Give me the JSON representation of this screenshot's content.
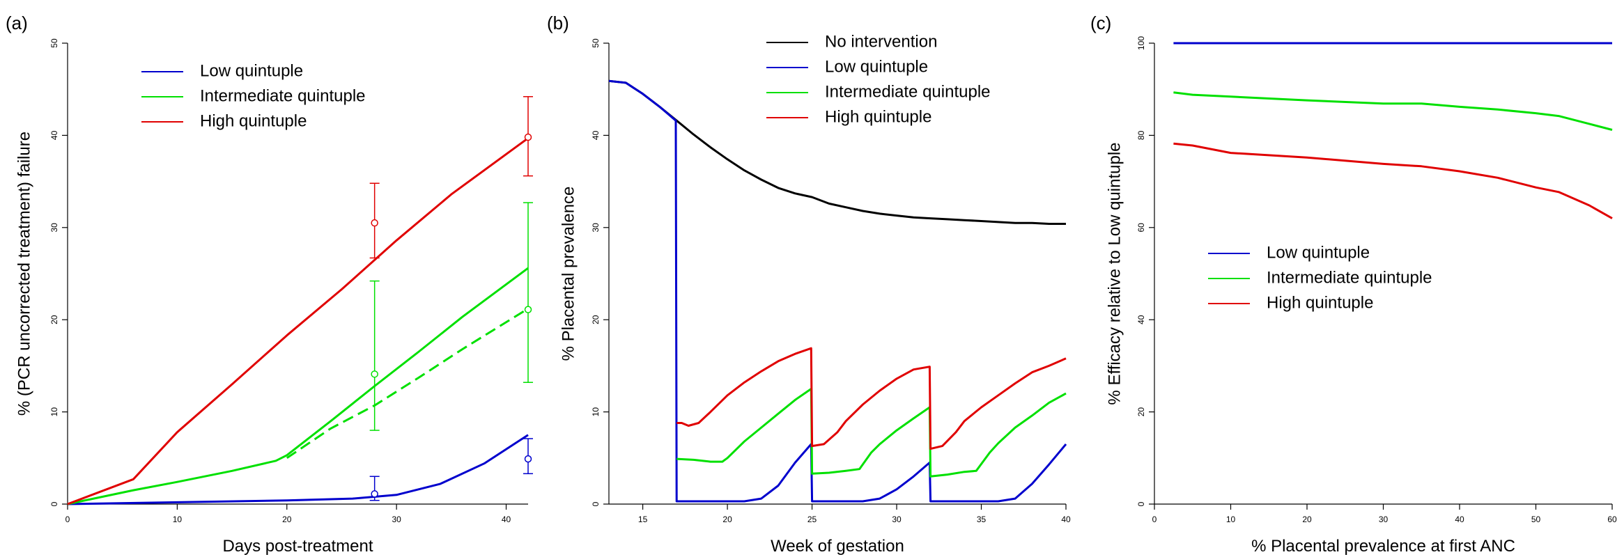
{
  "colors": {
    "no_intervention": "#000000",
    "low": "#0000CD",
    "intermediate": "#00E000",
    "high": "#E00000"
  },
  "chart_data": [
    {
      "panel": "(a)",
      "type": "line",
      "xlabel": "Days post-treatment",
      "ylabel": "% (PCR uncorrected treatment) failure",
      "xlim": [
        0,
        42
      ],
      "ylim": [
        0,
        50
      ],
      "xticks": [
        0,
        10,
        20,
        30,
        40
      ],
      "yticks": [
        0,
        10,
        20,
        30,
        40,
        50
      ],
      "legend_position": "top-left",
      "series": [
        {
          "name": "Low quintuple",
          "color_key": "low",
          "style": "solid",
          "x": [
            0,
            10,
            20,
            26,
            30,
            34,
            38,
            42
          ],
          "y": [
            0,
            0.2,
            0.4,
            0.6,
            1.0,
            2.2,
            4.4,
            7.5
          ]
        },
        {
          "name": "Intermediate quintuple",
          "color_key": "intermediate",
          "style": "solid",
          "x": [
            0,
            6,
            10,
            15,
            19,
            20,
            24,
            28,
            32,
            36,
            42
          ],
          "y": [
            0,
            1.5,
            2.4,
            3.6,
            4.7,
            5.3,
            9.0,
            12.8,
            16.5,
            20.3,
            25.6
          ]
        },
        {
          "name": "",
          "color_key": "intermediate",
          "style": "dashed",
          "x": [
            20,
            24,
            28,
            32,
            36,
            42
          ],
          "y": [
            5.0,
            8.2,
            10.7,
            13.7,
            16.8,
            21.2
          ]
        },
        {
          "name": "High quintuple",
          "color_key": "high",
          "style": "solid",
          "x": [
            0,
            6,
            10,
            15,
            20,
            25,
            30,
            35,
            42
          ],
          "y": [
            0,
            2.7,
            7.8,
            13.0,
            18.3,
            23.3,
            28.6,
            33.6,
            39.7
          ]
        }
      ],
      "error_bars": [
        {
          "color_key": "high",
          "x": 28,
          "y": 30.5,
          "lo": 26.7,
          "hi": 34.8
        },
        {
          "color_key": "high",
          "x": 42,
          "y": 39.8,
          "lo": 35.6,
          "hi": 44.2
        },
        {
          "color_key": "intermediate",
          "x": 28,
          "y": 14.1,
          "lo": 8.0,
          "hi": 24.2
        },
        {
          "color_key": "intermediate",
          "x": 42,
          "y": 21.1,
          "lo": 13.2,
          "hi": 32.7
        },
        {
          "color_key": "low",
          "x": 28,
          "y": 1.1,
          "lo": 0.4,
          "hi": 3.0
        },
        {
          "color_key": "low",
          "x": 42,
          "y": 4.9,
          "lo": 3.3,
          "hi": 7.1
        }
      ]
    },
    {
      "panel": "(b)",
      "type": "line",
      "xlabel": "Week of gestation",
      "ylabel": "% Placental prevalence",
      "xlim": [
        13,
        40
      ],
      "ylim": [
        0,
        50
      ],
      "xticks": [
        15,
        20,
        25,
        30,
        35,
        40
      ],
      "yticks": [
        0,
        10,
        20,
        30,
        40,
        50
      ],
      "legend_position": "top-right",
      "series": [
        {
          "name": "No intervention",
          "color_key": "no_intervention",
          "style": "solid",
          "x": [
            13,
            14,
            15,
            16,
            17,
            18,
            19,
            20,
            21,
            22,
            23,
            24,
            25,
            26,
            27,
            28,
            29,
            30,
            31,
            32,
            33,
            34,
            35,
            36,
            37,
            38,
            39,
            40
          ],
          "y": [
            45.9,
            45.7,
            44.5,
            43.1,
            41.6,
            40.1,
            38.7,
            37.4,
            36.2,
            35.2,
            34.3,
            33.7,
            33.3,
            32.6,
            32.2,
            31.8,
            31.5,
            31.3,
            31.1,
            31.0,
            30.9,
            30.8,
            30.7,
            30.6,
            30.5,
            30.5,
            30.4,
            30.4
          ]
        },
        {
          "name": "Low quintuple",
          "color_key": "low",
          "style": "solid",
          "x": [
            13,
            14,
            15,
            16,
            16.95,
            17,
            21,
            22,
            23,
            24,
            24.95,
            25,
            28,
            29,
            30,
            31,
            31.95,
            32,
            36,
            37,
            38,
            39,
            40
          ],
          "y": [
            45.9,
            45.7,
            44.5,
            43.1,
            41.6,
            0.3,
            0.3,
            0.6,
            2.0,
            4.5,
            6.5,
            0.3,
            0.3,
            0.6,
            1.6,
            3.0,
            4.5,
            0.3,
            0.3,
            0.6,
            2.2,
            4.3,
            6.5
          ]
        },
        {
          "name": "Intermediate quintuple",
          "color_key": "intermediate",
          "style": "solid",
          "x": [
            17,
            18,
            19,
            19.7,
            20,
            21,
            22,
            23,
            24,
            24.95,
            25,
            26,
            27,
            27.8,
            28.5,
            29,
            30,
            31,
            31.95,
            32,
            33,
            34,
            34.7,
            35.5,
            36,
            37,
            38,
            39,
            40
          ],
          "y": [
            4.9,
            4.8,
            4.6,
            4.6,
            5.0,
            6.8,
            8.3,
            9.8,
            11.3,
            12.5,
            3.3,
            3.4,
            3.6,
            3.8,
            5.6,
            6.5,
            8.0,
            9.3,
            10.5,
            3.0,
            3.2,
            3.5,
            3.6,
            5.6,
            6.6,
            8.3,
            9.6,
            11.0,
            12.0
          ]
        },
        {
          "name": "High quintuple",
          "color_key": "high",
          "style": "solid",
          "x": [
            17,
            17.3,
            17.7,
            18.3,
            19,
            20,
            21,
            22,
            23,
            24,
            24.95,
            25,
            25.7,
            26.5,
            27,
            28,
            29,
            30,
            31,
            31.95,
            32,
            32.7,
            33.5,
            34,
            35,
            36,
            37,
            38,
            39,
            40
          ],
          "y": [
            8.8,
            8.8,
            8.5,
            8.8,
            10.0,
            11.8,
            13.2,
            14.4,
            15.5,
            16.3,
            16.9,
            6.3,
            6.5,
            7.8,
            9.0,
            10.8,
            12.3,
            13.6,
            14.6,
            14.9,
            6.0,
            6.3,
            7.8,
            9.0,
            10.5,
            11.8,
            13.1,
            14.3,
            15.0,
            15.8
          ]
        }
      ]
    },
    {
      "panel": "(c)",
      "type": "line",
      "xlabel": "% Placental prevalence at first ANC",
      "ylabel": "% Efficacy relative to Low quintuple",
      "xlim": [
        0,
        60
      ],
      "ylim": [
        0,
        100
      ],
      "xticks": [
        0,
        10,
        20,
        30,
        40,
        50,
        60
      ],
      "yticks": [
        0,
        20,
        40,
        60,
        80,
        100
      ],
      "legend_position": "center-left",
      "series": [
        {
          "name": "Low quintuple",
          "color_key": "low",
          "style": "solid",
          "x": [
            2.5,
            60
          ],
          "y": [
            100,
            100
          ]
        },
        {
          "name": "Intermediate quintuple",
          "color_key": "intermediate",
          "style": "solid",
          "x": [
            2.5,
            5,
            10,
            20,
            30,
            35,
            40,
            45,
            50,
            53,
            57,
            60
          ],
          "y": [
            89.3,
            88.8,
            88.4,
            87.6,
            86.9,
            86.9,
            86.2,
            85.6,
            84.8,
            84.2,
            82.5,
            81.2
          ]
        },
        {
          "name": "High quintuple",
          "color_key": "high",
          "style": "solid",
          "x": [
            2.5,
            5,
            10,
            20,
            30,
            35,
            40,
            45,
            50,
            53,
            57,
            60
          ],
          "y": [
            78.2,
            77.8,
            76.2,
            75.2,
            73.8,
            73.3,
            72.2,
            70.8,
            68.7,
            67.7,
            64.8,
            62.0
          ]
        }
      ]
    }
  ]
}
